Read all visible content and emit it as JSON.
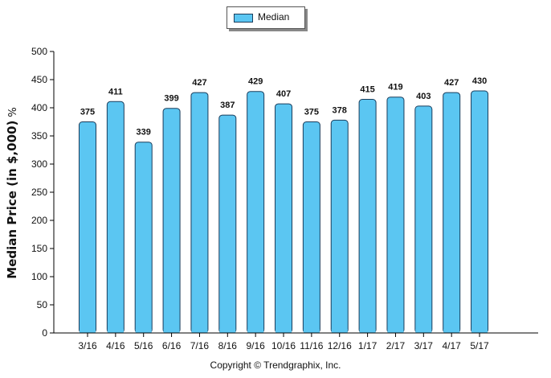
{
  "chart_data": {
    "type": "bar",
    "categories": [
      "3/16",
      "4/16",
      "5/16",
      "6/16",
      "7/16",
      "8/16",
      "9/16",
      "10/16",
      "11/16",
      "12/16",
      "1/17",
      "2/17",
      "3/17",
      "4/17",
      "5/17"
    ],
    "series": [
      {
        "name": "Median",
        "values": [
          375,
          411,
          339,
          399,
          427,
          387,
          429,
          407,
          375,
          378,
          415,
          419,
          403,
          427,
          430
        ]
      }
    ],
    "ylabel": "Median Price (in $,000)",
    "ylabel_suffix": "%",
    "xlabel": "",
    "ylim": [
      0,
      500
    ],
    "yticks": [
      0,
      50,
      100,
      150,
      200,
      250,
      300,
      350,
      400,
      450,
      500
    ],
    "legend_position": "top-center",
    "grid": false,
    "colors": {
      "bar_fill": "#5bc6f2",
      "bar_stroke": "#1a3d5c",
      "axis": "#000000"
    }
  },
  "footer": {
    "copyright": "Copyright © Trendgraphix, Inc."
  }
}
